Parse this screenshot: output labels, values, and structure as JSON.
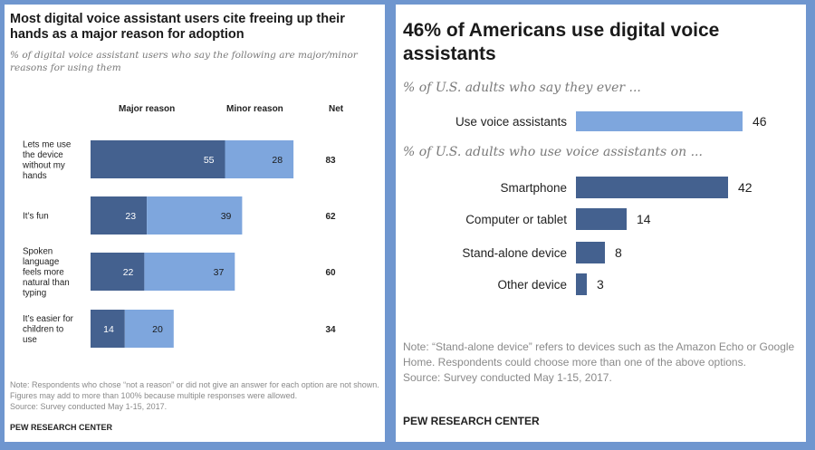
{
  "colors": {
    "background": "#6f96cf",
    "dark_blue": "#44618f",
    "light_blue": "#7ea6dd"
  },
  "left": {
    "title": "Most digital voice assistant users cite freeing up their hands as a major reason for adoption",
    "subtitle": "% of digital voice assistant users who say the following are major/minor reasons for using them",
    "note": "Note: Respondents who chose “not a reason” or did not give an answer for each option are not shown. Figures may add to more than 100% because multiple responses were allowed.",
    "source": "Source: Survey conducted May 1-15, 2017.",
    "brand": "PEW RESEARCH CENTER"
  },
  "right": {
    "title": "46% of Americans use digital voice assistants",
    "note": "Note: “Stand-alone device” refers to devices such as the Amazon Echo or Google Home. Respondents could choose more than one of the above options.",
    "source": "Source: Survey conducted May 1-15, 2017.",
    "brand": "PEW RESEARCH CENTER"
  },
  "chart_data": [
    {
      "type": "bar",
      "orientation": "horizontal",
      "stacked": true,
      "categories": [
        [
          "Lets me use",
          "the device",
          "without my",
          "hands"
        ],
        [
          "It’s fun"
        ],
        [
          "Spoken",
          "language",
          "feels more",
          "natural than",
          "typing"
        ],
        [
          "It’s easier for",
          "children to",
          "use"
        ]
      ],
      "column_headers": {
        "major": "Major reason",
        "minor": "Minor reason",
        "net": "Net"
      },
      "series": [
        {
          "name": "Major reason",
          "values": [
            55,
            23,
            22,
            14
          ],
          "color": "#44618f"
        },
        {
          "name": "Minor reason",
          "values": [
            28,
            39,
            37,
            20
          ],
          "color": "#7ea6dd"
        }
      ],
      "net": [
        83,
        62,
        60,
        34
      ]
    },
    {
      "type": "bar",
      "orientation": "horizontal",
      "groups": [
        {
          "subtitle": "% of U.S. adults who say they ever ...",
          "categories": [
            "Use voice assistants"
          ],
          "values": [
            46
          ],
          "color": "#7ea6dd"
        },
        {
          "subtitle": "% of U.S. adults who use voice assistants on ...",
          "categories": [
            "Smartphone",
            "Computer or tablet",
            "Stand-alone device",
            "Other device"
          ],
          "values": [
            42,
            14,
            8,
            3
          ],
          "color": "#44618f"
        }
      ]
    }
  ]
}
